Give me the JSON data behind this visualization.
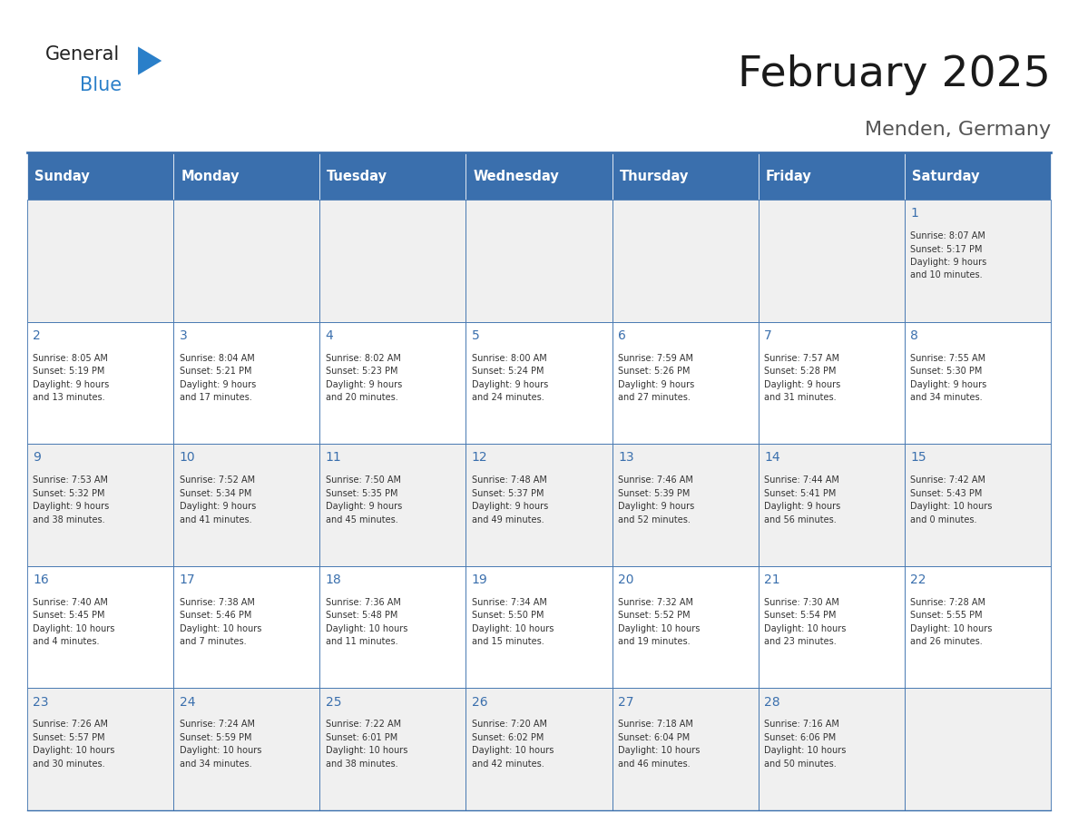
{
  "title": "February 2025",
  "subtitle": "Menden, Germany",
  "days_of_week": [
    "Sunday",
    "Monday",
    "Tuesday",
    "Wednesday",
    "Thursday",
    "Friday",
    "Saturday"
  ],
  "header_bg": "#3a6fad",
  "header_text": "#ffffff",
  "cell_bg_light": "#f0f0f0",
  "cell_bg_white": "#ffffff",
  "day_number_color": "#3a6fad",
  "info_text_color": "#333333",
  "border_color": "#3a6fad",
  "title_color": "#1a1a1a",
  "subtitle_color": "#555555",
  "logo_general_color": "#222222",
  "logo_blue_color": "#2a7fc9",
  "weeks": [
    [
      {
        "day": "",
        "info": ""
      },
      {
        "day": "",
        "info": ""
      },
      {
        "day": "",
        "info": ""
      },
      {
        "day": "",
        "info": ""
      },
      {
        "day": "",
        "info": ""
      },
      {
        "day": "",
        "info": ""
      },
      {
        "day": "1",
        "info": "Sunrise: 8:07 AM\nSunset: 5:17 PM\nDaylight: 9 hours\nand 10 minutes."
      }
    ],
    [
      {
        "day": "2",
        "info": "Sunrise: 8:05 AM\nSunset: 5:19 PM\nDaylight: 9 hours\nand 13 minutes."
      },
      {
        "day": "3",
        "info": "Sunrise: 8:04 AM\nSunset: 5:21 PM\nDaylight: 9 hours\nand 17 minutes."
      },
      {
        "day": "4",
        "info": "Sunrise: 8:02 AM\nSunset: 5:23 PM\nDaylight: 9 hours\nand 20 minutes."
      },
      {
        "day": "5",
        "info": "Sunrise: 8:00 AM\nSunset: 5:24 PM\nDaylight: 9 hours\nand 24 minutes."
      },
      {
        "day": "6",
        "info": "Sunrise: 7:59 AM\nSunset: 5:26 PM\nDaylight: 9 hours\nand 27 minutes."
      },
      {
        "day": "7",
        "info": "Sunrise: 7:57 AM\nSunset: 5:28 PM\nDaylight: 9 hours\nand 31 minutes."
      },
      {
        "day": "8",
        "info": "Sunrise: 7:55 AM\nSunset: 5:30 PM\nDaylight: 9 hours\nand 34 minutes."
      }
    ],
    [
      {
        "day": "9",
        "info": "Sunrise: 7:53 AM\nSunset: 5:32 PM\nDaylight: 9 hours\nand 38 minutes."
      },
      {
        "day": "10",
        "info": "Sunrise: 7:52 AM\nSunset: 5:34 PM\nDaylight: 9 hours\nand 41 minutes."
      },
      {
        "day": "11",
        "info": "Sunrise: 7:50 AM\nSunset: 5:35 PM\nDaylight: 9 hours\nand 45 minutes."
      },
      {
        "day": "12",
        "info": "Sunrise: 7:48 AM\nSunset: 5:37 PM\nDaylight: 9 hours\nand 49 minutes."
      },
      {
        "day": "13",
        "info": "Sunrise: 7:46 AM\nSunset: 5:39 PM\nDaylight: 9 hours\nand 52 minutes."
      },
      {
        "day": "14",
        "info": "Sunrise: 7:44 AM\nSunset: 5:41 PM\nDaylight: 9 hours\nand 56 minutes."
      },
      {
        "day": "15",
        "info": "Sunrise: 7:42 AM\nSunset: 5:43 PM\nDaylight: 10 hours\nand 0 minutes."
      }
    ],
    [
      {
        "day": "16",
        "info": "Sunrise: 7:40 AM\nSunset: 5:45 PM\nDaylight: 10 hours\nand 4 minutes."
      },
      {
        "day": "17",
        "info": "Sunrise: 7:38 AM\nSunset: 5:46 PM\nDaylight: 10 hours\nand 7 minutes."
      },
      {
        "day": "18",
        "info": "Sunrise: 7:36 AM\nSunset: 5:48 PM\nDaylight: 10 hours\nand 11 minutes."
      },
      {
        "day": "19",
        "info": "Sunrise: 7:34 AM\nSunset: 5:50 PM\nDaylight: 10 hours\nand 15 minutes."
      },
      {
        "day": "20",
        "info": "Sunrise: 7:32 AM\nSunset: 5:52 PM\nDaylight: 10 hours\nand 19 minutes."
      },
      {
        "day": "21",
        "info": "Sunrise: 7:30 AM\nSunset: 5:54 PM\nDaylight: 10 hours\nand 23 minutes."
      },
      {
        "day": "22",
        "info": "Sunrise: 7:28 AM\nSunset: 5:55 PM\nDaylight: 10 hours\nand 26 minutes."
      }
    ],
    [
      {
        "day": "23",
        "info": "Sunrise: 7:26 AM\nSunset: 5:57 PM\nDaylight: 10 hours\nand 30 minutes."
      },
      {
        "day": "24",
        "info": "Sunrise: 7:24 AM\nSunset: 5:59 PM\nDaylight: 10 hours\nand 34 minutes."
      },
      {
        "day": "25",
        "info": "Sunrise: 7:22 AM\nSunset: 6:01 PM\nDaylight: 10 hours\nand 38 minutes."
      },
      {
        "day": "26",
        "info": "Sunrise: 7:20 AM\nSunset: 6:02 PM\nDaylight: 10 hours\nand 42 minutes."
      },
      {
        "day": "27",
        "info": "Sunrise: 7:18 AM\nSunset: 6:04 PM\nDaylight: 10 hours\nand 46 minutes."
      },
      {
        "day": "28",
        "info": "Sunrise: 7:16 AM\nSunset: 6:06 PM\nDaylight: 10 hours\nand 50 minutes."
      },
      {
        "day": "",
        "info": ""
      }
    ]
  ]
}
